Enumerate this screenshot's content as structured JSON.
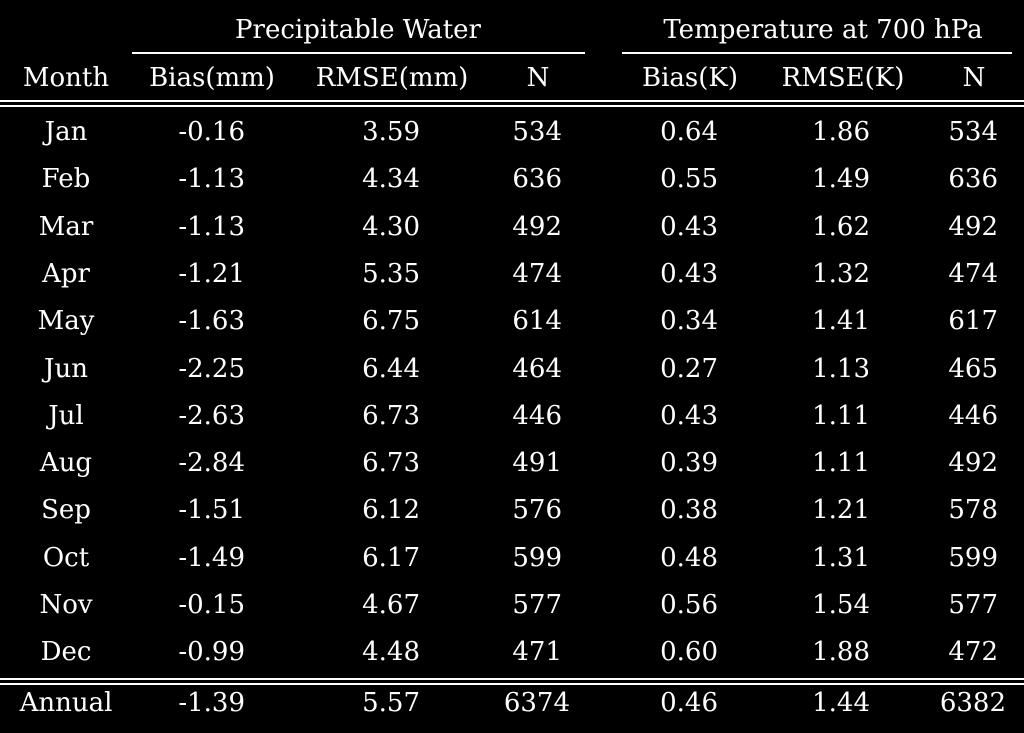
{
  "table": {
    "group_headers": {
      "precipitable_water": "Precipitable Water",
      "temperature": "Temperature at 700 hPa"
    },
    "columns": [
      "Month",
      "Bias(mm)",
      "RMSE(mm)",
      "N",
      "Bias(K)",
      "RMSE(K)",
      "N"
    ],
    "rows": [
      [
        "Jan",
        "-0.16",
        "3.59",
        "534",
        "0.64",
        "1.86",
        "534"
      ],
      [
        "Feb",
        "-1.13",
        "4.34",
        "636",
        "0.55",
        "1.49",
        "636"
      ],
      [
        "Mar",
        "-1.13",
        "4.30",
        "492",
        "0.43",
        "1.62",
        "492"
      ],
      [
        "Apr",
        "-1.21",
        "5.35",
        "474",
        "0.43",
        "1.32",
        "474"
      ],
      [
        "May",
        "-1.63",
        "6.75",
        "614",
        "0.34",
        "1.41",
        "617"
      ],
      [
        "Jun",
        "-2.25",
        "6.44",
        "464",
        "0.27",
        "1.13",
        "465"
      ],
      [
        "Jul",
        "-2.63",
        "6.73",
        "446",
        "0.43",
        "1.11",
        "446"
      ],
      [
        "Aug",
        "-2.84",
        "6.73",
        "491",
        "0.39",
        "1.11",
        "492"
      ],
      [
        "Sep",
        "-1.51",
        "6.12",
        "576",
        "0.38",
        "1.21",
        "578"
      ],
      [
        "Oct",
        "-1.49",
        "6.17",
        "599",
        "0.48",
        "1.31",
        "599"
      ],
      [
        "Nov",
        "-0.15",
        "4.67",
        "577",
        "0.56",
        "1.54",
        "577"
      ],
      [
        "Dec",
        "-0.99",
        "4.48",
        "471",
        "0.60",
        "1.88",
        "472"
      ]
    ],
    "annual": [
      "Annual",
      "-1.39",
      "5.57",
      "6374",
      "0.46",
      "1.44",
      "6382"
    ]
  },
  "colors": {
    "background": "#000000",
    "text": "#ffffff"
  }
}
